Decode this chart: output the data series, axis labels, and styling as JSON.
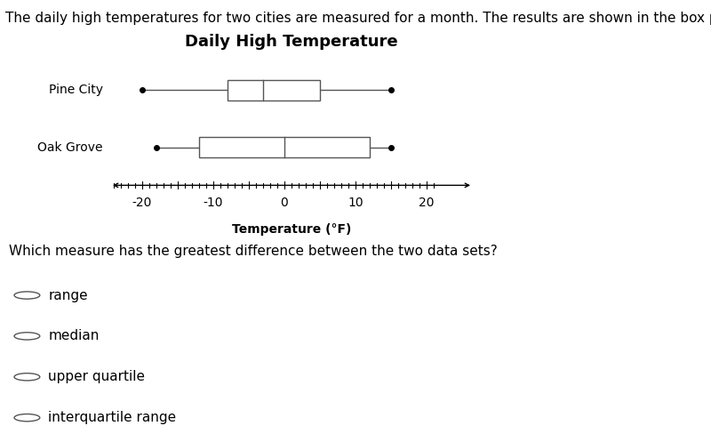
{
  "title": "Daily High Temperature",
  "xlabel": "Temperature (°F)",
  "header_text": "The daily high temperatures for two cities are measured for a month. The results are shown in the box plot.",
  "question_text": "Which measure has the greatest difference between the two data sets?",
  "choices": [
    "range",
    "median",
    "upper quartile",
    "interquartile range"
  ],
  "pine_city": {
    "label": "Pine City",
    "min": -20,
    "q1": -8,
    "median": -3,
    "q3": 5,
    "max": 15
  },
  "oak_grove": {
    "label": "Oak Grove",
    "min": -18,
    "q1": -12,
    "median": 0,
    "q3": 12,
    "max": 15
  },
  "xlim": [
    -25,
    27
  ],
  "xticks": [
    -20,
    -10,
    0,
    10,
    20
  ],
  "box_color": "#ffffff",
  "box_edge_color": "#555555",
  "whisker_color": "#555555",
  "bg_color": "#ffffff",
  "header_bg": "#f5a0a0",
  "header_text_color": "#000000",
  "question_font_size": 11,
  "choice_font_size": 11,
  "title_font_size": 13,
  "label_font_size": 10,
  "tick_font_size": 10
}
